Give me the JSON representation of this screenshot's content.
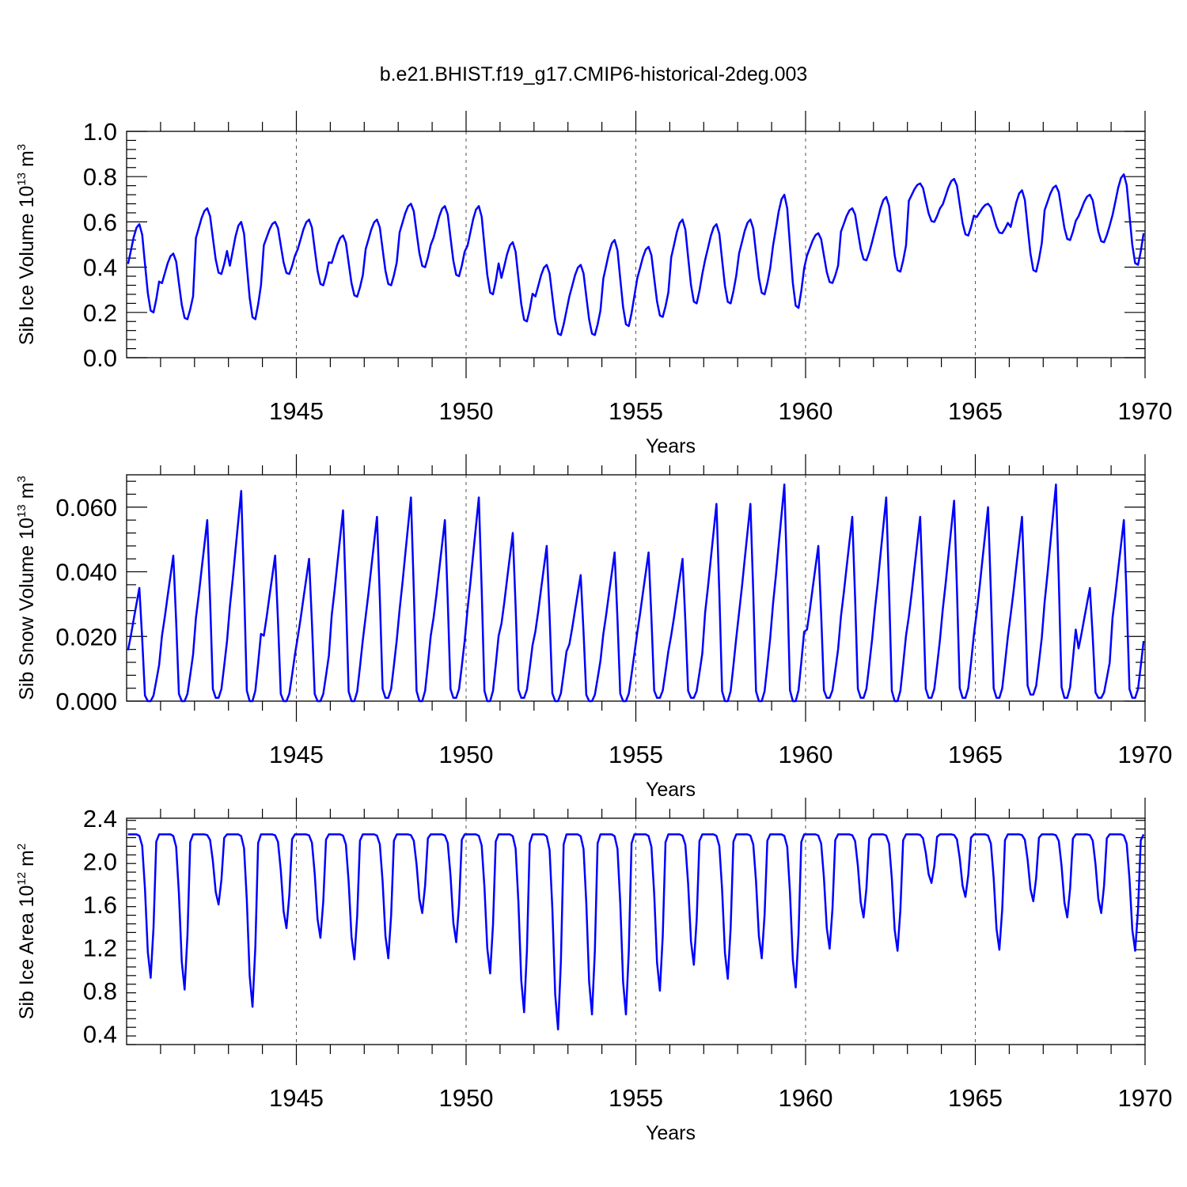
{
  "title": "b.e21.BHIST.f19_g17.CMIP6-historical-2deg.003",
  "colors": {
    "line": "#0000ff",
    "axis": "#000000"
  },
  "chart_data": [
    {
      "type": "line",
      "id": "ice-volume",
      "ylabel": "Sib Ice Volume 10",
      "ylabel_exp": "13",
      "ylabel_unit": " m",
      "ylabel_unit_exp": "3",
      "xlabel": "Years",
      "xlim": [
        1940,
        1970
      ],
      "ylim": [
        0.0,
        1.0
      ],
      "yticks": [
        0.0,
        0.2,
        0.4,
        0.6,
        0.8,
        1.0
      ],
      "ytick_labels": [
        "0.0",
        "0.2",
        "0.4",
        "0.6",
        "0.8",
        "1.0"
      ],
      "xticks": [
        1945,
        1950,
        1955,
        1960,
        1965,
        1970
      ],
      "xtick_labels": [
        "1945",
        "1950",
        "1955",
        "1960",
        "1965",
        "1970"
      ],
      "grid_x": true,
      "series_monthly_start": 1940.0,
      "yearly_minmax": [
        [
          0.2,
          0.59
        ],
        [
          0.17,
          0.46
        ],
        [
          0.37,
          0.66
        ],
        [
          0.17,
          0.6
        ],
        [
          0.37,
          0.6
        ],
        [
          0.32,
          0.61
        ],
        [
          0.27,
          0.54
        ],
        [
          0.32,
          0.61
        ],
        [
          0.4,
          0.68
        ],
        [
          0.36,
          0.67
        ],
        [
          0.28,
          0.67
        ],
        [
          0.16,
          0.51
        ],
        [
          0.1,
          0.41
        ],
        [
          0.1,
          0.41
        ],
        [
          0.14,
          0.52
        ],
        [
          0.18,
          0.49
        ],
        [
          0.24,
          0.61
        ],
        [
          0.24,
          0.59
        ],
        [
          0.28,
          0.61
        ],
        [
          0.22,
          0.72
        ],
        [
          0.33,
          0.55
        ],
        [
          0.43,
          0.66
        ],
        [
          0.38,
          0.71
        ],
        [
          0.6,
          0.77
        ],
        [
          0.54,
          0.79
        ],
        [
          0.55,
          0.68
        ],
        [
          0.38,
          0.74
        ],
        [
          0.52,
          0.76
        ],
        [
          0.51,
          0.72
        ],
        [
          0.41,
          0.81
        ]
      ]
    },
    {
      "type": "line",
      "id": "snow-volume",
      "ylabel": "Sib Snow Volume 10",
      "ylabel_exp": "13",
      "ylabel_unit": " m",
      "ylabel_unit_exp": "3",
      "xlabel": "Years",
      "xlim": [
        1940,
        1970
      ],
      "ylim": [
        0.0,
        0.07
      ],
      "yticks": [
        0.0,
        0.02,
        0.04,
        0.06
      ],
      "ytick_labels": [
        "0.000",
        "0.020",
        "0.040",
        "0.060"
      ],
      "xticks": [
        1945,
        1950,
        1955,
        1960,
        1965,
        1970
      ],
      "xtick_labels": [
        "1945",
        "1950",
        "1955",
        "1960",
        "1965",
        "1970"
      ],
      "grid_x": true,
      "series_monthly_start": 1940.0,
      "yearly_minmax": [
        [
          0.0,
          0.035
        ],
        [
          0.0,
          0.045
        ],
        [
          0.001,
          0.056
        ],
        [
          0.0,
          0.065
        ],
        [
          0.0,
          0.045
        ],
        [
          0.0,
          0.044
        ],
        [
          0.0,
          0.059
        ],
        [
          0.001,
          0.057
        ],
        [
          0.0,
          0.063
        ],
        [
          0.001,
          0.056
        ],
        [
          0.0,
          0.063
        ],
        [
          0.001,
          0.052
        ],
        [
          0.0,
          0.048
        ],
        [
          0.0,
          0.039
        ],
        [
          0.0,
          0.046
        ],
        [
          0.001,
          0.046
        ],
        [
          0.001,
          0.044
        ],
        [
          0.0,
          0.061
        ],
        [
          0.0,
          0.061
        ],
        [
          0.0,
          0.067
        ],
        [
          0.001,
          0.048
        ],
        [
          0.001,
          0.057
        ],
        [
          0.0,
          0.063
        ],
        [
          0.001,
          0.057
        ],
        [
          0.001,
          0.062
        ],
        [
          0.001,
          0.06
        ],
        [
          0.002,
          0.057
        ],
        [
          0.001,
          0.067
        ],
        [
          0.001,
          0.035
        ],
        [
          0.001,
          0.056
        ]
      ]
    },
    {
      "type": "line",
      "id": "ice-area",
      "ylabel": "Sib Ice Area 10",
      "ylabel_exp": "12",
      "ylabel_unit": " m",
      "ylabel_unit_exp": "2",
      "xlabel": "Years",
      "xlim": [
        1940,
        1970
      ],
      "ylim": [
        0.3,
        2.4
      ],
      "yticks": [
        0.4,
        0.8,
        1.2,
        1.6,
        2.0,
        2.4
      ],
      "ytick_labels": [
        "0.4",
        "0.8",
        "1.2",
        "1.6",
        "2.0",
        "2.4"
      ],
      "xticks": [
        1945,
        1950,
        1955,
        1960,
        1965,
        1970
      ],
      "xtick_labels": [
        "1945",
        "1950",
        "1955",
        "1960",
        "1965",
        "1970"
      ],
      "grid_x": true,
      "series_monthly_start": 1940.0,
      "yearly_minmax": [
        [
          0.92,
          2.25
        ],
        [
          0.81,
          2.25
        ],
        [
          1.6,
          2.25
        ],
        [
          0.65,
          2.25
        ],
        [
          1.38,
          2.25
        ],
        [
          1.29,
          2.25
        ],
        [
          1.09,
          2.25
        ],
        [
          1.1,
          2.25
        ],
        [
          1.52,
          2.25
        ],
        [
          1.25,
          2.25
        ],
        [
          0.96,
          2.25
        ],
        [
          0.6,
          2.25
        ],
        [
          0.44,
          2.25
        ],
        [
          0.58,
          2.25
        ],
        [
          0.58,
          2.25
        ],
        [
          0.8,
          2.25
        ],
        [
          1.04,
          2.25
        ],
        [
          0.91,
          2.25
        ],
        [
          1.1,
          2.25
        ],
        [
          0.83,
          2.25
        ],
        [
          1.19,
          2.25
        ],
        [
          1.48,
          2.25
        ],
        [
          1.17,
          2.25
        ],
        [
          1.8,
          2.25
        ],
        [
          1.67,
          2.25
        ],
        [
          1.18,
          2.25
        ],
        [
          1.63,
          2.25
        ],
        [
          1.48,
          2.25
        ],
        [
          1.52,
          2.25
        ],
        [
          1.17,
          2.25
        ]
      ]
    }
  ]
}
